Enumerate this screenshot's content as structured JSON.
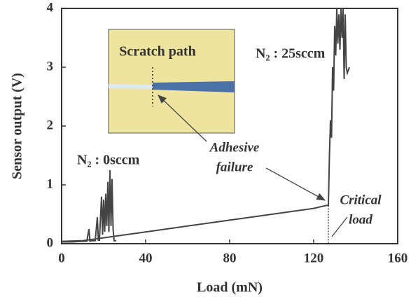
{
  "chart_data": {
    "type": "line",
    "xlabel": "Load  (mN)",
    "ylabel": "Sensor output  (V)",
    "xlim": [
      0,
      160
    ],
    "xticks": [
      0,
      40,
      80,
      120,
      160
    ],
    "ylim": [
      0,
      4
    ],
    "yticks": [
      0,
      1,
      2,
      3,
      4
    ],
    "series": [
      {
        "name": "N₂ : 0sccm",
        "color": "#444444",
        "x": [
          0,
          5,
          10,
          12,
          13,
          13.5,
          14,
          16,
          17,
          17.5,
          18,
          19,
          19.5,
          20,
          20.5,
          21,
          21.5,
          22,
          22.5,
          23,
          23.5,
          24,
          24.5,
          25,
          26
        ],
        "values": [
          0.03,
          0.03,
          0.04,
          0.04,
          0.25,
          0.04,
          0.05,
          0.05,
          0.45,
          0.06,
          0.06,
          0.8,
          0.15,
          0.75,
          0.2,
          0.85,
          0.3,
          1.05,
          0.2,
          1.25,
          0.3,
          1.1,
          0.25,
          0.05,
          0.05
        ]
      },
      {
        "name": "N₂ : 25sccm",
        "color": "#444444",
        "x": [
          0,
          10,
          20,
          40,
          60,
          80,
          100,
          120,
          126,
          127,
          127.5,
          128,
          128.5,
          129,
          129.5,
          130,
          130.5,
          131,
          131.5,
          132,
          132.5,
          133,
          133.5,
          134,
          134.5,
          135,
          135.5,
          136,
          137
        ],
        "values": [
          0.04,
          0.05,
          0.1,
          0.2,
          0.3,
          0.4,
          0.5,
          0.6,
          0.65,
          0.65,
          1.5,
          2.1,
          1.8,
          3.0,
          2.6,
          3.7,
          3.2,
          4.0,
          3.4,
          3.9,
          3.3,
          4.0,
          3.5,
          4.0,
          2.8,
          3.9,
          3.0,
          2.9,
          3.0
        ]
      }
    ],
    "inset_title": "Scratch path",
    "annotations": [
      "Adhesive",
      "failure",
      "Critical",
      "load"
    ],
    "critical_load": 127
  }
}
